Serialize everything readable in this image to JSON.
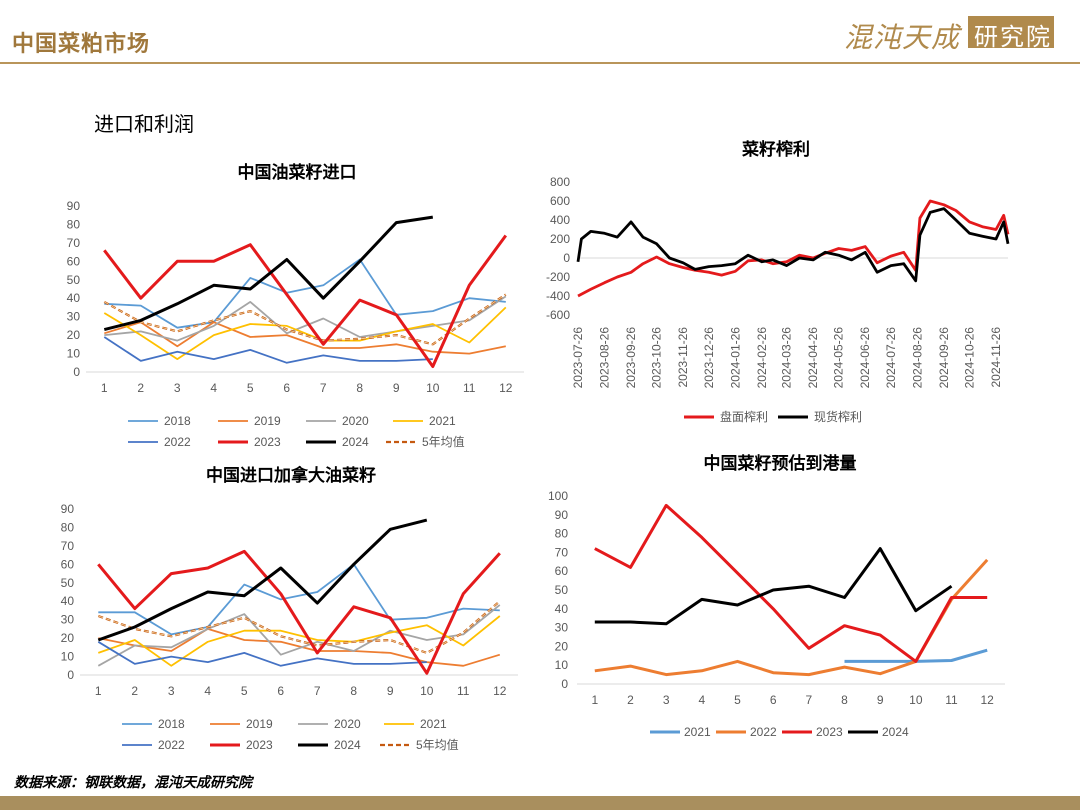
{
  "header": {
    "title": "中国菜粕市场",
    "logo_main": "混沌天成",
    "logo_box": "研究院"
  },
  "section_title": "进口和利润",
  "footer_source": "数据来源：钢联数据，混沌天成研究院",
  "colors": {
    "s2018": "#5b9bd5",
    "s2019": "#ed7d31",
    "s2020": "#a5a5a5",
    "s2021": "#ffc000",
    "s2022": "#4472c4",
    "s2023": "#e41a1c",
    "s2024": "#000000",
    "avg": "#c55a11",
    "black": "#000000"
  },
  "chart_data": [
    {
      "type": "line",
      "title": "中国油菜籽进口",
      "categories": [
        "1",
        "2",
        "3",
        "4",
        "5",
        "6",
        "7",
        "8",
        "9",
        "10",
        "11",
        "12"
      ],
      "ylim": [
        0,
        90
      ],
      "yticks": [
        "0",
        "10",
        "20",
        "30",
        "40",
        "50",
        "60",
        "70",
        "80",
        "90"
      ],
      "series": [
        {
          "name": "2018",
          "values": [
            37,
            36,
            24,
            27,
            51,
            43,
            47,
            61,
            31,
            33,
            40,
            38
          ]
        },
        {
          "name": "2019",
          "values": [
            21,
            27,
            14,
            27,
            19,
            20,
            13,
            13,
            15,
            11,
            10,
            14
          ]
        },
        {
          "name": "2020",
          "values": [
            20,
            22,
            17,
            25,
            38,
            21,
            29,
            19,
            22,
            25,
            28,
            41
          ]
        },
        {
          "name": "2021",
          "values": [
            32,
            20,
            7,
            20,
            26,
            25,
            17,
            17,
            22,
            26,
            16,
            35
          ]
        },
        {
          "name": "2022",
          "values": [
            19,
            6,
            11,
            7,
            12,
            5,
            9,
            6,
            6,
            7,
            null,
            null
          ]
        },
        {
          "name": "2023",
          "values": [
            66,
            40,
            60,
            60,
            69,
            42,
            15,
            39,
            31,
            3,
            47,
            74
          ]
        },
        {
          "name": "2024",
          "values": [
            23,
            28,
            37,
            47,
            45,
            61,
            40,
            60,
            81,
            84,
            null,
            null
          ]
        },
        {
          "name": "5年均值",
          "values": [
            38,
            27,
            22,
            28,
            33,
            23,
            17,
            18,
            20,
            15,
            29,
            42
          ]
        }
      ]
    },
    {
      "type": "line",
      "title": "菜籽榨利",
      "x_start": "2023-07-26",
      "x_end": "2024-12-10",
      "xticks": [
        "2023-07-26",
        "2023-08-26",
        "2023-09-26",
        "2023-10-26",
        "2023-11-26",
        "2023-12-26",
        "2024-01-26",
        "2024-02-26",
        "2024-03-26",
        "2024-04-26",
        "2024-05-26",
        "2024-06-26",
        "2024-07-26",
        "2024-08-26",
        "2024-09-26",
        "2024-10-26",
        "2024-11-26"
      ],
      "ylim": [
        -600,
        800
      ],
      "yticks": [
        "-600",
        "-400",
        "-200",
        "0",
        "200",
        "400",
        "600",
        "800"
      ],
      "series": [
        {
          "name": "盘面榨利",
          "points": [
            [
              "2023-07-26",
              -400
            ],
            [
              "2023-08-10",
              -330
            ],
            [
              "2023-08-26",
              -260
            ],
            [
              "2023-09-10",
              -200
            ],
            [
              "2023-09-26",
              -150
            ],
            [
              "2023-10-10",
              -60
            ],
            [
              "2023-10-26",
              10
            ],
            [
              "2023-11-10",
              -60
            ],
            [
              "2023-11-26",
              -100
            ],
            [
              "2023-12-10",
              -130
            ],
            [
              "2023-12-26",
              -150
            ],
            [
              "2024-01-10",
              -180
            ],
            [
              "2024-01-26",
              -140
            ],
            [
              "2024-02-10",
              -30
            ],
            [
              "2024-02-26",
              -20
            ],
            [
              "2024-03-10",
              -60
            ],
            [
              "2024-03-26",
              -40
            ],
            [
              "2024-04-10",
              30
            ],
            [
              "2024-04-26",
              0
            ],
            [
              "2024-05-10",
              50
            ],
            [
              "2024-05-26",
              100
            ],
            [
              "2024-06-10",
              80
            ],
            [
              "2024-06-26",
              120
            ],
            [
              "2024-07-10",
              -50
            ],
            [
              "2024-07-26",
              20
            ],
            [
              "2024-08-10",
              60
            ],
            [
              "2024-08-24",
              -130
            ],
            [
              "2024-08-29",
              420
            ],
            [
              "2024-09-10",
              600
            ],
            [
              "2024-09-26",
              560
            ],
            [
              "2024-10-10",
              500
            ],
            [
              "2024-10-26",
              380
            ],
            [
              "2024-11-10",
              330
            ],
            [
              "2024-11-26",
              300
            ],
            [
              "2024-12-05",
              450
            ],
            [
              "2024-12-10",
              250
            ]
          ]
        },
        {
          "name": "现货榨利",
          "points": [
            [
              "2023-07-26",
              -40
            ],
            [
              "2023-07-30",
              200
            ],
            [
              "2023-08-10",
              280
            ],
            [
              "2023-08-26",
              260
            ],
            [
              "2023-09-10",
              220
            ],
            [
              "2023-09-26",
              380
            ],
            [
              "2023-10-10",
              220
            ],
            [
              "2023-10-26",
              150
            ],
            [
              "2023-11-10",
              0
            ],
            [
              "2023-11-26",
              -50
            ],
            [
              "2023-12-10",
              -120
            ],
            [
              "2023-12-26",
              -90
            ],
            [
              "2024-01-10",
              -80
            ],
            [
              "2024-01-26",
              -60
            ],
            [
              "2024-02-10",
              30
            ],
            [
              "2024-02-26",
              -40
            ],
            [
              "2024-03-10",
              -20
            ],
            [
              "2024-03-26",
              -80
            ],
            [
              "2024-04-10",
              0
            ],
            [
              "2024-04-26",
              -20
            ],
            [
              "2024-05-10",
              60
            ],
            [
              "2024-05-26",
              30
            ],
            [
              "2024-06-10",
              -20
            ],
            [
              "2024-06-26",
              60
            ],
            [
              "2024-07-10",
              -150
            ],
            [
              "2024-07-26",
              -80
            ],
            [
              "2024-08-10",
              -60
            ],
            [
              "2024-08-24",
              -240
            ],
            [
              "2024-08-29",
              240
            ],
            [
              "2024-09-10",
              480
            ],
            [
              "2024-09-26",
              520
            ],
            [
              "2024-10-10",
              400
            ],
            [
              "2024-10-26",
              260
            ],
            [
              "2024-11-10",
              230
            ],
            [
              "2024-11-26",
              200
            ],
            [
              "2024-12-05",
              380
            ],
            [
              "2024-12-10",
              150
            ]
          ]
        }
      ]
    },
    {
      "type": "line",
      "title": "中国进口加拿大油菜籽",
      "categories": [
        "1",
        "2",
        "3",
        "4",
        "5",
        "6",
        "7",
        "8",
        "9",
        "10",
        "11",
        "12"
      ],
      "ylim": [
        0,
        90
      ],
      "yticks": [
        "0",
        "10",
        "20",
        "30",
        "40",
        "50",
        "60",
        "70",
        "80",
        "90"
      ],
      "series": [
        {
          "name": "2018",
          "values": [
            34,
            34,
            22,
            26,
            49,
            41,
            45,
            60,
            30,
            31,
            36,
            35
          ]
        },
        {
          "name": "2019",
          "values": [
            20,
            16,
            13,
            25,
            19,
            18,
            13,
            13,
            12,
            7,
            5,
            11
          ]
        },
        {
          "name": "2020",
          "values": [
            5,
            16,
            15,
            25,
            33,
            11,
            18,
            13,
            24,
            19,
            22,
            38
          ]
        },
        {
          "name": "2021",
          "values": [
            12,
            19,
            5,
            18,
            24,
            24,
            19,
            18,
            23,
            27,
            16,
            32
          ]
        },
        {
          "name": "2022",
          "values": [
            18,
            6,
            10,
            7,
            12,
            5,
            9,
            6,
            6,
            7,
            null,
            null
          ]
        },
        {
          "name": "2023",
          "values": [
            60,
            36,
            55,
            58,
            67,
            44,
            12,
            37,
            31,
            1,
            44,
            66
          ]
        },
        {
          "name": "2024",
          "values": [
            19,
            26,
            36,
            45,
            43,
            58,
            39,
            60,
            79,
            84,
            null,
            null
          ]
        },
        {
          "name": "5年均值",
          "values": [
            32,
            25,
            21,
            26,
            31,
            21,
            16,
            18,
            19,
            12,
            23,
            40
          ]
        }
      ]
    },
    {
      "type": "line",
      "title": "中国菜籽预估到港量",
      "categories": [
        "1",
        "2",
        "3",
        "4",
        "5",
        "6",
        "7",
        "8",
        "9",
        "10",
        "11",
        "12"
      ],
      "ylim": [
        0,
        100
      ],
      "yticks": [
        "0",
        "10",
        "20",
        "30",
        "40",
        "50",
        "60",
        "70",
        "80",
        "90",
        "100"
      ],
      "series": [
        {
          "name": "2021",
          "values": [
            null,
            null,
            null,
            null,
            null,
            null,
            null,
            12,
            12,
            12,
            12.5,
            18
          ]
        },
        {
          "name": "2022",
          "values": [
            7,
            9.5,
            5,
            7,
            12,
            6,
            5,
            9,
            5.5,
            12,
            45,
            66
          ]
        },
        {
          "name": "2023",
          "values": [
            72,
            62,
            95,
            78,
            59,
            40,
            19,
            31,
            26,
            12,
            46,
            46
          ]
        },
        {
          "name": "2024",
          "values": [
            33,
            33,
            32,
            45,
            42,
            50,
            52,
            46,
            72,
            39,
            52,
            null
          ]
        }
      ]
    }
  ]
}
